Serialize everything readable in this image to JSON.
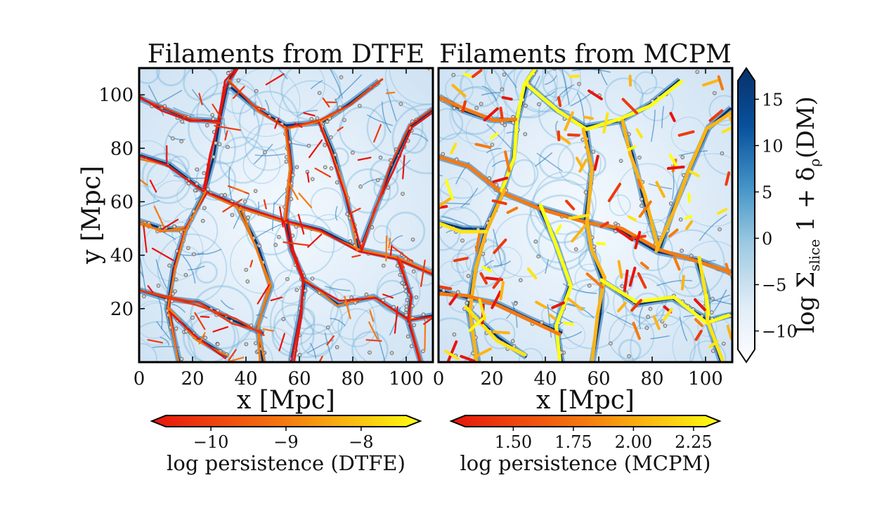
{
  "chart_data": [
    {
      "type": "heatmap",
      "title": "Filaments from DTFE",
      "xlabel": "x [Mpc]",
      "ylabel": "y [Mpc]",
      "xlim": [
        0,
        110
      ],
      "ylim": [
        0,
        110
      ],
      "x_ticks": [
        0,
        20,
        40,
        60,
        80,
        100
      ],
      "y_ticks": [
        20,
        40,
        60,
        80,
        100
      ],
      "overlay": "filaments colored by log persistence",
      "colorbar": {
        "label": "log persistence (DTFE)",
        "range": [
          -10.6,
          -7.4
        ],
        "ticks": [
          -10,
          -9,
          -8
        ],
        "tick_labels": [
          "−10",
          "−9",
          "−8"
        ],
        "colormap": [
          "#e8140c",
          "#f57a0f",
          "#ffff10"
        ],
        "extend": "both",
        "placement": "bottom"
      }
    },
    {
      "type": "heatmap",
      "title": "Filaments from MCPM",
      "xlabel": "x [Mpc]",
      "ylabel": "",
      "xlim": [
        0,
        110
      ],
      "ylim": [
        0,
        110
      ],
      "x_ticks": [
        0,
        20,
        40,
        60,
        80,
        100
      ],
      "y_ticks": [],
      "overlay": "filaments colored by log persistence",
      "colorbar": {
        "label": "log persistence (MCPM)",
        "range": [
          1.3,
          2.3
        ],
        "ticks": [
          1.5,
          1.75,
          2.0,
          2.25
        ],
        "tick_labels": [
          "1.50",
          "1.75",
          "2.00",
          "2.25"
        ],
        "colormap": [
          "#e8140c",
          "#f57a0f",
          "#ffff10"
        ],
        "extend": "both",
        "placement": "bottom"
      }
    }
  ],
  "density_colorbar": {
    "label_parts": [
      "log Σ",
      "slice",
      " 1 + δ",
      "ρ",
      "(DM)"
    ],
    "range": [
      -12,
      17
    ],
    "ticks": [
      -10,
      -5,
      0,
      5,
      10,
      15
    ],
    "tick_labels": [
      "−10",
      "−5",
      "0",
      "5",
      "10",
      "15"
    ],
    "colormap": [
      "#ffffff",
      "#deebf7",
      "#9ecae1",
      "#4292c6",
      "#08519c",
      "#08306b"
    ],
    "extend": "both",
    "placement": "right"
  }
}
